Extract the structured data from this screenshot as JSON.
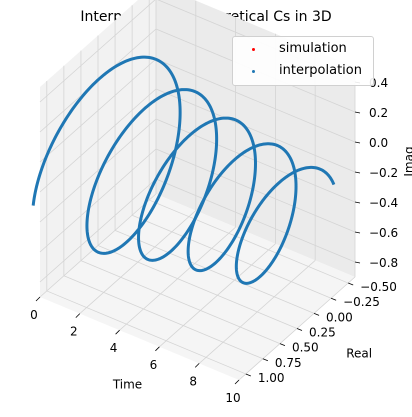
{
  "chart_data": {
    "type": "scatter",
    "projection": "3d",
    "title": "Interpolated vs Theoretical Cs in 3D",
    "xlabel": "Time",
    "ylabel": "Real",
    "zlabel": "Imag",
    "xlim": [
      0,
      10
    ],
    "ylim": [
      -0.6,
      1.1
    ],
    "zlim": [
      -0.9,
      0.5
    ],
    "x_ticks": [
      "0",
      "2",
      "4",
      "6",
      "8",
      "10"
    ],
    "y_ticks": [
      "−0.50",
      "−0.25",
      "0.00",
      "0.25",
      "0.50",
      "0.75",
      "1.00"
    ],
    "z_ticks": [
      "−0.8",
      "−0.6",
      "−0.4",
      "−0.2",
      "0.0",
      "0.2",
      "0.4"
    ],
    "grid": true,
    "legend_position": "top-right",
    "series": [
      {
        "name": "simulation",
        "color": "#ff0000",
        "marker": "dot"
      },
      {
        "name": "interpolation",
        "color": "#1f77b4",
        "marker": "dot"
      }
    ],
    "curve_description": "damped helix: t from 0 to 10, real and imag oscillating with decaying amplitude"
  }
}
